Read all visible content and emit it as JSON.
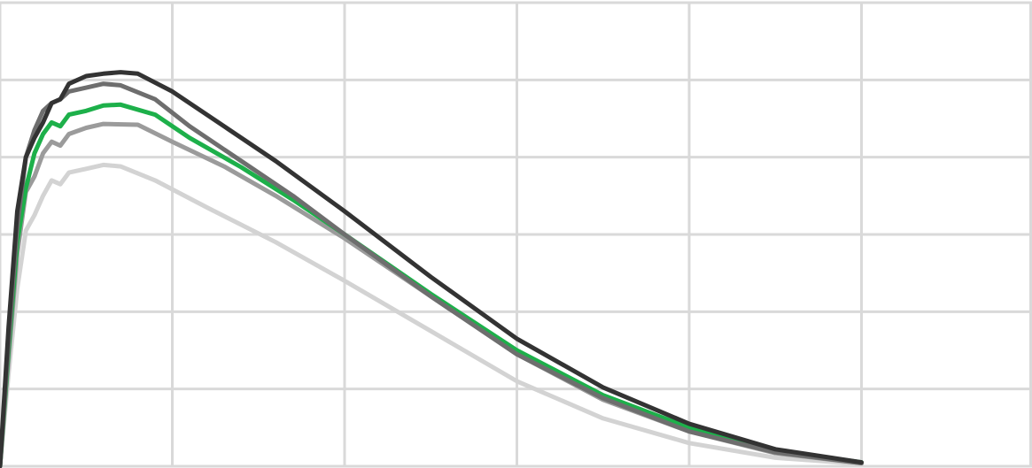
{
  "chart_data": {
    "type": "line",
    "title": "",
    "xlabel": "",
    "ylabel": "",
    "xlim": [
      0,
      6
    ],
    "ylim": [
      0,
      6
    ],
    "grid": true,
    "x_gridlines": [
      0,
      1,
      2,
      3,
      4,
      5,
      6
    ],
    "y_gridlines": [
      0,
      1,
      2,
      3,
      4,
      5,
      6
    ],
    "series": [
      {
        "color": "#d3d3d3",
        "points": [
          [
            0,
            0
          ],
          [
            0.05,
            1.2
          ],
          [
            0.1,
            2.3
          ],
          [
            0.15,
            3.05
          ],
          [
            0.2,
            3.25
          ],
          [
            0.25,
            3.5
          ],
          [
            0.3,
            3.7
          ],
          [
            0.35,
            3.65
          ],
          [
            0.4,
            3.8
          ],
          [
            0.5,
            3.85
          ],
          [
            0.6,
            3.9
          ],
          [
            0.7,
            3.88
          ],
          [
            0.9,
            3.7
          ],
          [
            1.2,
            3.35
          ],
          [
            1.6,
            2.9
          ],
          [
            2,
            2.4
          ],
          [
            2.5,
            1.75
          ],
          [
            3,
            1.1
          ],
          [
            3.5,
            0.62
          ],
          [
            4,
            0.3
          ],
          [
            4.5,
            0.11
          ],
          [
            5,
            0.03
          ]
        ]
      },
      {
        "color": "#9b9b9b",
        "points": [
          [
            0,
            0
          ],
          [
            0.05,
            1.4
          ],
          [
            0.1,
            2.75
          ],
          [
            0.15,
            3.55
          ],
          [
            0.2,
            3.75
          ],
          [
            0.25,
            4.05
          ],
          [
            0.3,
            4.2
          ],
          [
            0.35,
            4.15
          ],
          [
            0.4,
            4.3
          ],
          [
            0.5,
            4.38
          ],
          [
            0.6,
            4.43
          ],
          [
            0.8,
            4.42
          ],
          [
            1,
            4.2
          ],
          [
            1.3,
            3.88
          ],
          [
            1.6,
            3.5
          ],
          [
            2,
            2.95
          ],
          [
            2.5,
            2.2
          ],
          [
            3,
            1.45
          ],
          [
            3.5,
            0.86
          ],
          [
            4,
            0.45
          ],
          [
            4.5,
            0.17
          ],
          [
            5,
            0.04
          ]
        ]
      },
      {
        "color": "#1db04a",
        "points": [
          [
            0,
            0
          ],
          [
            0.05,
            1.5
          ],
          [
            0.1,
            2.9
          ],
          [
            0.15,
            3.6
          ],
          [
            0.2,
            4.05
          ],
          [
            0.25,
            4.3
          ],
          [
            0.3,
            4.45
          ],
          [
            0.35,
            4.4
          ],
          [
            0.4,
            4.55
          ],
          [
            0.5,
            4.6
          ],
          [
            0.6,
            4.67
          ],
          [
            0.7,
            4.68
          ],
          [
            0.9,
            4.55
          ],
          [
            1.1,
            4.25
          ],
          [
            1.4,
            3.87
          ],
          [
            1.7,
            3.45
          ],
          [
            2,
            3
          ],
          [
            2.5,
            2.23
          ],
          [
            3,
            1.5
          ],
          [
            3.5,
            0.92
          ],
          [
            4,
            0.5
          ],
          [
            4.5,
            0.2
          ],
          [
            5,
            0.05
          ]
        ]
      },
      {
        "color": "#6e6e6e",
        "points": [
          [
            0,
            0
          ],
          [
            0.05,
            1.6
          ],
          [
            0.1,
            3.1
          ],
          [
            0.15,
            4
          ],
          [
            0.2,
            4.35
          ],
          [
            0.25,
            4.6
          ],
          [
            0.3,
            4.7
          ],
          [
            0.35,
            4.75
          ],
          [
            0.4,
            4.85
          ],
          [
            0.5,
            4.9
          ],
          [
            0.6,
            4.95
          ],
          [
            0.7,
            4.93
          ],
          [
            0.9,
            4.75
          ],
          [
            1.1,
            4.4
          ],
          [
            1.4,
            3.95
          ],
          [
            1.7,
            3.5
          ],
          [
            2,
            3
          ],
          [
            2.5,
            2.2
          ],
          [
            3,
            1.45
          ],
          [
            3.5,
            0.88
          ],
          [
            4,
            0.45
          ],
          [
            4.5,
            0.18
          ],
          [
            5,
            0.04
          ]
        ]
      },
      {
        "color": "#333333",
        "points": [
          [
            0,
            0
          ],
          [
            0.05,
            1.8
          ],
          [
            0.1,
            3.3
          ],
          [
            0.15,
            4
          ],
          [
            0.2,
            4.25
          ],
          [
            0.25,
            4.45
          ],
          [
            0.3,
            4.7
          ],
          [
            0.35,
            4.75
          ],
          [
            0.4,
            4.95
          ],
          [
            0.5,
            5.05
          ],
          [
            0.6,
            5.08
          ],
          [
            0.7,
            5.1
          ],
          [
            0.8,
            5.08
          ],
          [
            1,
            4.85
          ],
          [
            1.3,
            4.4
          ],
          [
            1.6,
            3.95
          ],
          [
            2,
            3.3
          ],
          [
            2.5,
            2.45
          ],
          [
            3,
            1.65
          ],
          [
            3.5,
            1.02
          ],
          [
            4,
            0.55
          ],
          [
            4.5,
            0.22
          ],
          [
            5,
            0.05
          ]
        ]
      }
    ]
  }
}
